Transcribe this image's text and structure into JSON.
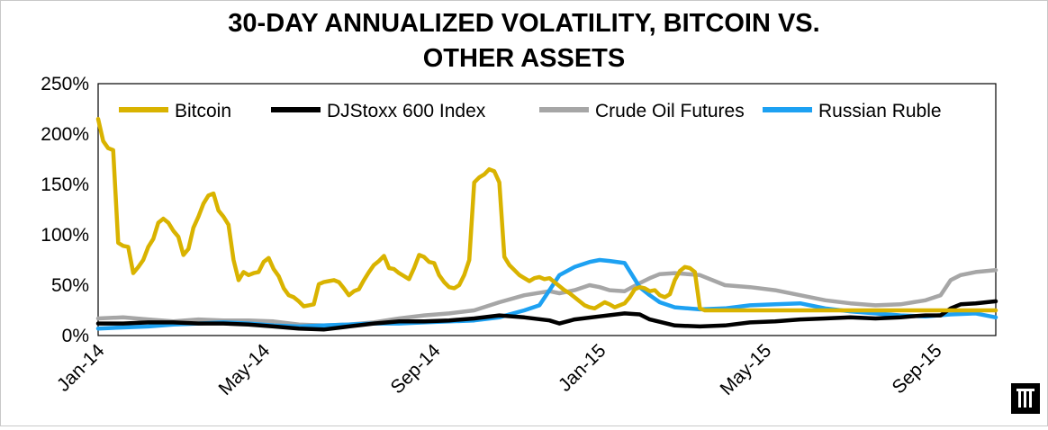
{
  "chart_data": {
    "type": "line",
    "title_lines": [
      "30-DAY ANNUALIZED VOLATILITY, BITCOIN VS.",
      "OTHER ASSETS"
    ],
    "xlabel": "",
    "ylabel": "",
    "x_range": [
      2014.0,
      2015.79
    ],
    "ylim": [
      0,
      250
    ],
    "y_ticks": [
      0,
      50,
      100,
      150,
      200,
      250
    ],
    "y_tick_format": "{v}%",
    "x_ticks": [
      {
        "x": 2014.0,
        "label": "Jan-14"
      },
      {
        "x": 2014.33,
        "label": "May-14"
      },
      {
        "x": 2014.67,
        "label": "Sep-14"
      },
      {
        "x": 2015.0,
        "label": "Jan-15"
      },
      {
        "x": 2015.33,
        "label": "May-15"
      },
      {
        "x": 2015.67,
        "label": "Sep-15"
      }
    ],
    "legend_position": "top",
    "series": [
      {
        "name": "Bitcoin",
        "color": "#d9b300",
        "x": [
          2014.0,
          2014.01,
          2014.02,
          2014.03,
          2014.04,
          2014.05,
          2014.06,
          2014.07,
          2014.08,
          2014.09,
          2014.1,
          2014.11,
          2014.12,
          2014.13,
          2014.14,
          2014.15,
          2014.16,
          2014.17,
          2014.18,
          2014.19,
          2014.2,
          2014.21,
          2014.22,
          2014.23,
          2014.24,
          2014.25,
          2014.26,
          2014.27,
          2014.28,
          2014.29,
          2014.3,
          2014.31,
          2014.32,
          2014.33,
          2014.34,
          2014.35,
          2014.36,
          2014.37,
          2014.38,
          2014.39,
          2014.4,
          2014.41,
          2014.42,
          2014.43,
          2014.44,
          2014.45,
          2014.46,
          2014.47,
          2014.48,
          2014.49,
          2014.5,
          2014.51,
          2014.52,
          2014.53,
          2014.54,
          2014.55,
          2014.56,
          2014.57,
          2014.58,
          2014.59,
          2014.6,
          2014.61,
          2014.62,
          2014.63,
          2014.64,
          2014.65,
          2014.66,
          2014.67,
          2014.68,
          2014.69,
          2014.7,
          2014.71,
          2014.72,
          2014.73,
          2014.74,
          2014.75,
          2014.76,
          2014.77,
          2014.78,
          2014.79,
          2014.8,
          2014.81,
          2014.82,
          2014.83,
          2014.84,
          2014.85,
          2014.86,
          2014.87,
          2014.88,
          2014.89,
          2014.9,
          2014.91,
          2014.92,
          2014.93,
          2014.94,
          2014.95,
          2014.96,
          2014.97,
          2014.98,
          2014.99,
          2015.0,
          2015.01,
          2015.02,
          2015.03,
          2015.04,
          2015.05,
          2015.06,
          2015.07,
          2015.08,
          2015.09,
          2015.1,
          2015.11,
          2015.12,
          2015.13,
          2015.14,
          2015.15,
          2015.16,
          2015.17,
          2015.18,
          2015.19,
          2015.2,
          2015.21,
          2015.22,
          2015.23,
          2015.24,
          2015.25,
          2015.26,
          2015.27,
          2015.28,
          2015.29,
          2015.3,
          2015.31,
          2015.32,
          2015.33,
          2015.34,
          2015.35,
          2015.36,
          2015.37,
          2015.38,
          2015.39,
          2015.4,
          2015.41,
          2015.42,
          2015.43,
          2015.44,
          2015.45,
          2015.46,
          2015.47,
          2015.48,
          2015.49,
          2015.5,
          2015.51,
          2015.52,
          2015.53,
          2015.54,
          2015.55,
          2015.56,
          2015.57,
          2015.58,
          2015.59,
          2015.6,
          2015.61,
          2015.62,
          2015.63,
          2015.64,
          2015.65,
          2015.66,
          2015.67,
          2015.68,
          2015.69,
          2015.7,
          2015.71,
          2015.72,
          2015.73,
          2015.74,
          2015.75,
          2015.76,
          2015.77,
          2015.78,
          2015.79
        ],
        "values": [
          215,
          193,
          186,
          184,
          92,
          89,
          88,
          62,
          68,
          75,
          88,
          96,
          112,
          116,
          112,
          104,
          98,
          80,
          86,
          107,
          118,
          131,
          139,
          141,
          124,
          118,
          110,
          75,
          55,
          63,
          60,
          62,
          63,
          73,
          77,
          66,
          59,
          47,
          40,
          38,
          34,
          29,
          30,
          31,
          51,
          53,
          54,
          55,
          53,
          47,
          40,
          44,
          46,
          55,
          63,
          70,
          74,
          79,
          67,
          66,
          62,
          59,
          56,
          67,
          80,
          78,
          73,
          72,
          60,
          53,
          48,
          47,
          50,
          60,
          75,
          152,
          157,
          160,
          165,
          163,
          152,
          78,
          70,
          65,
          60,
          57,
          54,
          57,
          58,
          56,
          57,
          53,
          49,
          45,
          42,
          38,
          34,
          30,
          28,
          27,
          30,
          33,
          31,
          28,
          30,
          32,
          38,
          46,
          48,
          47,
          44,
          45,
          40,
          38,
          41,
          55,
          64,
          68,
          67,
          63,
          27,
          25,
          25,
          25,
          25,
          25,
          25,
          25,
          25,
          25,
          25,
          25,
          25,
          25,
          25,
          25,
          25,
          25,
          25,
          25,
          25,
          25,
          25,
          25,
          25,
          25,
          25,
          25,
          25,
          25,
          25,
          25,
          25,
          25,
          25,
          25,
          25,
          25,
          25,
          25,
          25,
          25,
          25,
          25,
          25,
          25,
          25,
          25,
          25,
          25,
          25,
          25,
          25,
          25,
          25,
          25,
          25,
          25,
          25,
          25
        ]
      },
      {
        "name": "DJStoxx 600 Index",
        "color": "#000000",
        "x": [
          2014.0,
          2014.05,
          2014.1,
          2014.15,
          2014.2,
          2014.25,
          2014.3,
          2014.35,
          2014.4,
          2014.45,
          2014.5,
          2014.55,
          2014.6,
          2014.65,
          2014.7,
          2014.75,
          2014.8,
          2014.85,
          2014.9,
          2014.92,
          2014.95,
          2015.0,
          2015.05,
          2015.08,
          2015.1,
          2015.15,
          2015.2,
          2015.25,
          2015.3,
          2015.35,
          2015.4,
          2015.45,
          2015.5,
          2015.55,
          2015.6,
          2015.62,
          2015.65,
          2015.68,
          2015.7,
          2015.72,
          2015.75,
          2015.79
        ],
        "values": [
          12,
          12,
          13,
          13,
          12,
          12,
          11,
          9,
          7,
          6,
          9,
          12,
          14,
          14,
          15,
          17,
          20,
          18,
          15,
          12,
          16,
          19,
          22,
          21,
          16,
          10,
          9,
          10,
          13,
          14,
          16,
          17,
          18,
          17,
          18,
          19,
          20,
          20,
          27,
          31,
          32,
          34
        ]
      },
      {
        "name": "Crude Oil Futures",
        "color": "#a6a6a6",
        "x": [
          2014.0,
          2014.05,
          2014.1,
          2014.15,
          2014.2,
          2014.25,
          2014.3,
          2014.35,
          2014.4,
          2014.45,
          2014.5,
          2014.55,
          2014.6,
          2014.65,
          2014.7,
          2014.75,
          2014.8,
          2014.85,
          2014.9,
          2014.92,
          2014.95,
          2014.98,
          2015.0,
          2015.02,
          2015.05,
          2015.08,
          2015.1,
          2015.12,
          2015.15,
          2015.2,
          2015.25,
          2015.3,
          2015.35,
          2015.4,
          2015.45,
          2015.5,
          2015.55,
          2015.6,
          2015.65,
          2015.68,
          2015.7,
          2015.72,
          2015.75,
          2015.79
        ],
        "values": [
          17,
          18,
          16,
          14,
          16,
          15,
          15,
          14,
          11,
          10,
          11,
          13,
          17,
          20,
          22,
          25,
          33,
          40,
          44,
          42,
          45,
          50,
          48,
          45,
          44,
          52,
          57,
          61,
          62,
          60,
          50,
          48,
          45,
          40,
          35,
          32,
          30,
          31,
          35,
          40,
          55,
          60,
          63,
          65
        ]
      },
      {
        "name": "Russian Ruble",
        "color": "#1da1f2",
        "x": [
          2014.0,
          2014.05,
          2014.1,
          2014.15,
          2014.2,
          2014.25,
          2014.3,
          2014.35,
          2014.4,
          2014.45,
          2014.5,
          2014.55,
          2014.6,
          2014.65,
          2014.7,
          2014.75,
          2014.8,
          2014.82,
          2014.85,
          2014.88,
          2014.9,
          2014.92,
          2014.95,
          2014.98,
          2015.0,
          2015.02,
          2015.05,
          2015.08,
          2015.1,
          2015.12,
          2015.15,
          2015.2,
          2015.25,
          2015.3,
          2015.35,
          2015.4,
          2015.45,
          2015.5,
          2015.55,
          2015.6,
          2015.65,
          2015.7,
          2015.75,
          2015.79
        ],
        "values": [
          7,
          8,
          9,
          11,
          12,
          13,
          12,
          10,
          9,
          10,
          11,
          12,
          12,
          13,
          14,
          15,
          18,
          21,
          25,
          30,
          45,
          60,
          68,
          73,
          75,
          74,
          72,
          48,
          40,
          33,
          28,
          26,
          27,
          30,
          31,
          32,
          27,
          24,
          22,
          20,
          19,
          21,
          22,
          18
        ]
      }
    ]
  }
}
